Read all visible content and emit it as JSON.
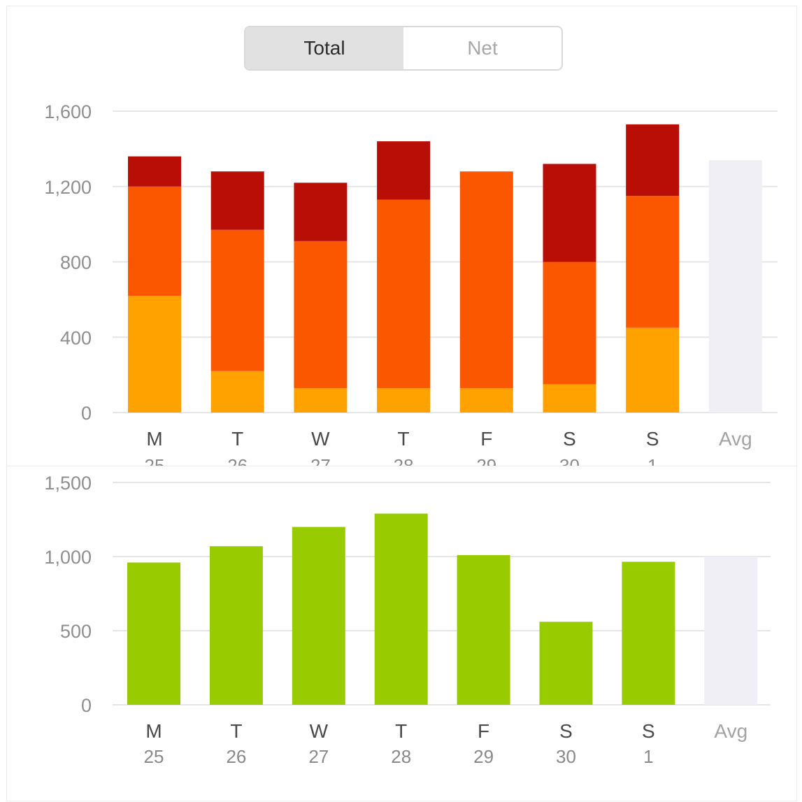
{
  "toggle": {
    "options": [
      "Total",
      "Net"
    ],
    "selected": "Total"
  },
  "days": [
    "M",
    "T",
    "W",
    "T",
    "F",
    "S",
    "S"
  ],
  "dates": [
    "25",
    "26",
    "27",
    "28",
    "29",
    "30",
    "1"
  ],
  "avg_label": "Avg",
  "colors": {
    "layer_bottom": "#ffa200",
    "layer_middle": "#fa5700",
    "layer_top": "#b90e05",
    "green": "#99cc00",
    "avg_bar": "#efeff5",
    "grid": "#e5e5ea"
  },
  "chart_data": [
    {
      "type": "bar",
      "stacked": true,
      "categories": [
        "M",
        "T",
        "W",
        "T",
        "F",
        "S",
        "S"
      ],
      "series": [
        {
          "values": [
            620,
            220,
            130,
            130,
            130,
            150,
            450
          ]
        },
        {
          "values": [
            580,
            750,
            780,
            1000,
            1150,
            650,
            700
          ]
        },
        {
          "values": [
            160,
            310,
            310,
            310,
            0,
            520,
            380
          ]
        }
      ],
      "avg": 1340,
      "yticks": [
        0,
        400,
        800,
        1200,
        1600
      ],
      "ytick_labels": [
        "0",
        "400",
        "800",
        "1,200",
        "1,600"
      ],
      "ylim": [
        0,
        1600
      ],
      "grid": true
    },
    {
      "type": "bar",
      "categories": [
        "M",
        "T",
        "W",
        "T",
        "F",
        "S",
        "S"
      ],
      "series": [
        {
          "values": [
            960,
            1070,
            1200,
            1290,
            1010,
            560,
            965
          ]
        }
      ],
      "avg": 1000,
      "yticks": [
        0,
        500,
        1000,
        1500
      ],
      "ytick_labels": [
        "0",
        "500",
        "1,000",
        "1,500"
      ],
      "ylim": [
        0,
        1500
      ],
      "grid": true
    }
  ]
}
